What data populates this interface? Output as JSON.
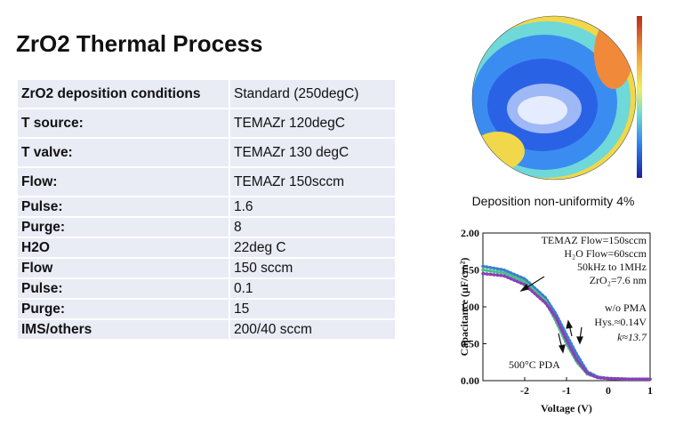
{
  "title": "ZrO2 Thermal Process",
  "table": {
    "rows": [
      [
        "ZrO2 deposition conditions",
        "Standard (250degC)"
      ],
      [
        "T source:",
        "TEMAZr 120degC"
      ],
      [
        "T valve:",
        "TEMAZr 130 degC"
      ],
      [
        "Flow:",
        "TEMAZr 150sccm"
      ],
      [
        "Pulse:",
        "1.6"
      ],
      [
        "Purge:",
        "8"
      ],
      [
        "H2O",
        "22deg C"
      ],
      [
        "Flow",
        "150 sccm"
      ],
      [
        "Pulse:",
        "0.1"
      ],
      [
        "Purge:",
        "15"
      ],
      [
        "IMS/others",
        "200/40 sccm"
      ]
    ]
  },
  "wafer_map": {
    "caption": "Deposition non-uniformity 4%"
  },
  "chart_data": {
    "type": "line",
    "x_label": "Voltage (V)",
    "y_label": "Capacitance (μF/cm²)",
    "annotations": [
      "TEMAZ Flow=150sccm",
      "H₂O Flow=60sccm",
      "50kHz to 1MHz",
      "ZrO₂=7.6 nm",
      "w/o PMA",
      "Hys.≈0.14V",
      "k≈13.7",
      "500°C PDA"
    ],
    "x": [
      -3,
      -2.5,
      -2,
      -1.5,
      -1.25,
      -1,
      -0.75,
      -0.5,
      -0.25,
      0,
      0.5,
      1
    ],
    "series": [
      {
        "color": "#3a7fd0",
        "values": [
          1.55,
          1.5,
          1.38,
          1.12,
          0.9,
          0.62,
          0.35,
          0.12,
          0.05,
          0.03,
          0.02,
          0.02
        ]
      },
      {
        "color": "#4cbf8a",
        "values": [
          1.5,
          1.46,
          1.34,
          1.08,
          0.8,
          0.5,
          0.25,
          0.09,
          0.04,
          0.03,
          0.02,
          0.02
        ]
      },
      {
        "color": "#8a3fb5",
        "values": [
          1.45,
          1.42,
          1.3,
          1.05,
          0.85,
          0.55,
          0.28,
          0.1,
          0.04,
          0.03,
          0.02,
          0.02
        ]
      }
    ],
    "xlim": [
      -3,
      1
    ],
    "ylim": [
      0,
      2
    ],
    "xticks": [
      -2,
      -1,
      0,
      1
    ],
    "yticks": [
      {
        "value": 0,
        "label": "0.00"
      },
      {
        "value": 0.5,
        "label": "0.50"
      },
      {
        "value": 1,
        "label": "1.00"
      },
      {
        "value": 1.5,
        "label": "1.50"
      },
      {
        "value": 2,
        "label": "2.00"
      }
    ]
  }
}
